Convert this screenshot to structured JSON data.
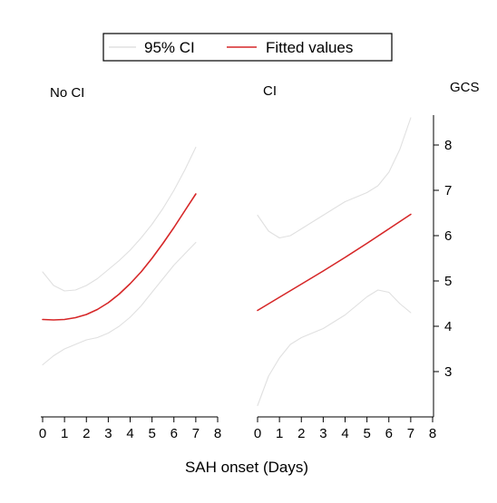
{
  "chart_data": {
    "type": "line",
    "xlabel": "SAH onset (Days)",
    "ylabel": "GCS",
    "x_ticks": [
      0,
      1,
      2,
      3,
      4,
      5,
      6,
      7,
      8
    ],
    "y_ticks": [
      3,
      4,
      5,
      6,
      7,
      8
    ],
    "xlim": [
      0,
      8
    ],
    "ylim": [
      2,
      8.6
    ],
    "legend": {
      "placement": "top-center",
      "entries": [
        {
          "label": "95% CI",
          "color": "#e0e0e0"
        },
        {
          "label": "Fitted values",
          "color": "#d62728"
        }
      ]
    },
    "panels": [
      {
        "title": "No CI",
        "series": [
          {
            "name": "Fitted values",
            "color": "#d62728",
            "x": [
              0,
              0.5,
              1,
              1.5,
              2,
              2.5,
              3,
              3.5,
              4,
              4.5,
              5,
              5.5,
              6,
              6.5,
              7
            ],
            "y": [
              4.15,
              4.14,
              4.15,
              4.19,
              4.26,
              4.37,
              4.52,
              4.71,
              4.94,
              5.2,
              5.5,
              5.83,
              6.18,
              6.55,
              6.92
            ]
          },
          {
            "name": "95% CI",
            "color": "#e0e0e0",
            "x": [
              0,
              0.5,
              1,
              1.5,
              2,
              2.5,
              3,
              3.5,
              4,
              4.5,
              5,
              5.5,
              6,
              6.5,
              7
            ],
            "y": [
              5.2,
              4.9,
              4.78,
              4.8,
              4.9,
              5.05,
              5.25,
              5.45,
              5.68,
              5.95,
              6.25,
              6.6,
              7.0,
              7.45,
              7.95
            ]
          },
          {
            "name": "95% CI",
            "color": "#e0e0e0",
            "x": [
              0,
              0.5,
              1,
              1.5,
              2,
              2.5,
              3,
              3.5,
              4,
              4.5,
              5,
              5.5,
              6,
              6.5,
              7
            ],
            "y": [
              3.15,
              3.35,
              3.5,
              3.6,
              3.7,
              3.75,
              3.85,
              4.0,
              4.2,
              4.45,
              4.75,
              5.05,
              5.35,
              5.6,
              5.85
            ]
          }
        ]
      },
      {
        "title": "CI",
        "series": [
          {
            "name": "Fitted values",
            "color": "#d62728",
            "x": [
              0,
              1,
              2,
              3,
              4,
              5,
              6,
              7
            ],
            "y": [
              4.35,
              4.64,
              4.93,
              5.22,
              5.52,
              5.83,
              6.15,
              6.47
            ]
          },
          {
            "name": "95% CI",
            "color": "#e0e0e0",
            "x": [
              0,
              0.5,
              1,
              1.5,
              2,
              2.5,
              3,
              3.5,
              4,
              4.5,
              5,
              5.5,
              6,
              6.5,
              7
            ],
            "y": [
              6.45,
              6.1,
              5.95,
              6.0,
              6.15,
              6.3,
              6.45,
              6.6,
              6.75,
              6.85,
              6.95,
              7.1,
              7.4,
              7.9,
              8.6
            ]
          },
          {
            "name": "95% CI",
            "color": "#e0e0e0",
            "x": [
              0,
              0.5,
              1,
              1.5,
              2,
              2.5,
              3,
              3.5,
              4,
              4.5,
              5,
              5.5,
              6,
              6.5,
              7
            ],
            "y": [
              2.25,
              2.9,
              3.3,
              3.6,
              3.75,
              3.85,
              3.95,
              4.1,
              4.25,
              4.45,
              4.65,
              4.8,
              4.75,
              4.5,
              4.3
            ]
          }
        ]
      }
    ]
  }
}
